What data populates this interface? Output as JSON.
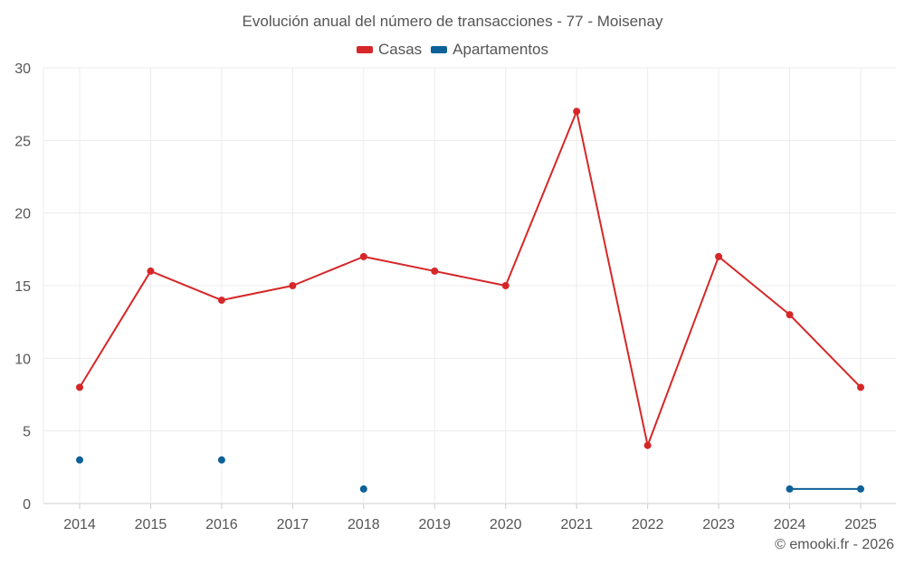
{
  "chart_data": {
    "type": "line",
    "title": "Evolución anual del número de transacciones - 77 - Moisenay",
    "categories": [
      "2014",
      "2015",
      "2016",
      "2017",
      "2018",
      "2019",
      "2020",
      "2021",
      "2022",
      "2023",
      "2024",
      "2025"
    ],
    "ylim": [
      0,
      30
    ],
    "yticks": [
      0,
      5,
      10,
      15,
      20,
      25,
      30
    ],
    "grid": true,
    "legend_position": "top-center",
    "series": [
      {
        "name": "Casas",
        "color": "#d62728",
        "values": [
          8,
          16,
          14,
          15,
          17,
          16,
          15,
          27,
          4,
          17,
          13,
          8
        ]
      },
      {
        "name": "Apartamentos",
        "color": "#0e6198",
        "values": [
          3,
          null,
          3,
          null,
          1,
          null,
          null,
          null,
          null,
          null,
          1,
          1
        ]
      }
    ]
  },
  "credit": "© emooki.fr - 2026"
}
